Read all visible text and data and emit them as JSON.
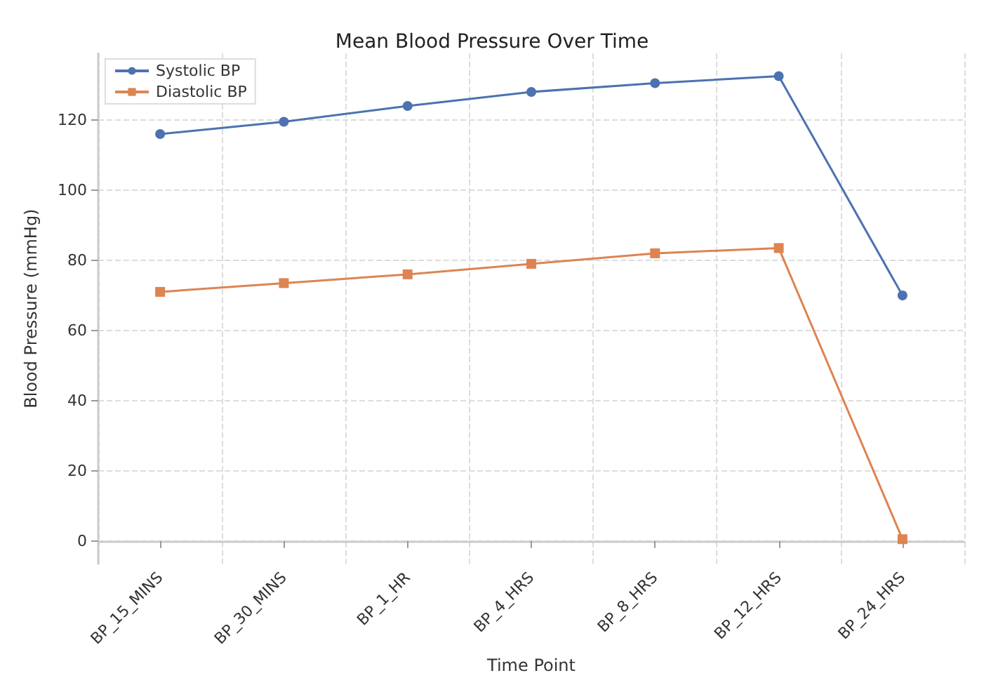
{
  "chart_data": {
    "type": "line",
    "title": "Mean Blood Pressure Over Time",
    "xlabel": "Time Point",
    "ylabel": "Blood Pressure (mmHg)",
    "categories": [
      "BP_15_MINS",
      "BP_30_MINS",
      "BP_1_HR",
      "BP_4_HRS",
      "BP_8_HRS",
      "BP_12_HRS",
      "BP_24_HRS"
    ],
    "series": [
      {
        "name": "Systolic BP",
        "color": "#4c72b0",
        "marker": "circle",
        "values": [
          116,
          119.5,
          124,
          128,
          130.5,
          132.5,
          70
        ]
      },
      {
        "name": "Diastolic BP",
        "color": "#dd8452",
        "marker": "square",
        "values": [
          71,
          73.5,
          76,
          79,
          82,
          83.5,
          0.5
        ]
      }
    ],
    "ylim": [
      -6.5,
      139
    ],
    "yticks": [
      0,
      20,
      40,
      60,
      80,
      100,
      120
    ],
    "grid": true,
    "legend": "top left",
    "line_style": "solid"
  }
}
